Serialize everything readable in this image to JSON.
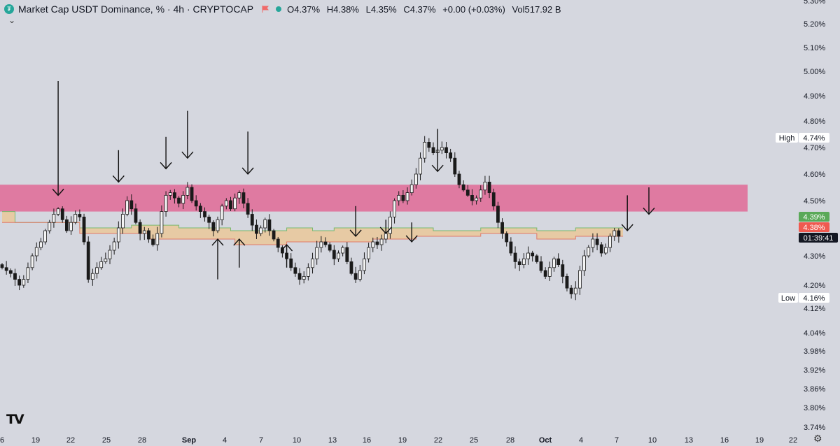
{
  "header": {
    "title": "Market Cap USDT Dominance, % · 4h · CRYPTOCAP",
    "open": "O4.37%",
    "high": "H4.38%",
    "low": "L4.35%",
    "close": "C4.37%",
    "change": "+0.00 (+0.03%)",
    "volume": "Vol517.92 B"
  },
  "icons": {
    "symbol": "tether-icon",
    "flag": "flag-icon",
    "market_status": "dot-icon",
    "collapse": "chevron-down-icon",
    "logo": "tradingview-logo",
    "settings": "gear-icon"
  },
  "colors": {
    "background": "#d5d7df",
    "resistance_zone": "#e0709a",
    "cloud": "#e8c9a0",
    "cloud_upper": "#78b96e",
    "cloud_lower": "#e07a6a",
    "candles": "#1a1a1a",
    "arrows": "#111111",
    "green_badge": "#5aa958",
    "red_badge": "#ef5a50",
    "dark_badge": "#131722"
  },
  "chart_data": {
    "type": "candlestick",
    "title": "Market Cap USDT Dominance, % · 4h · CRYPTOCAP",
    "y_axis": {
      "unit": "%",
      "labels": [
        "5.30%",
        "5.20%",
        "5.10%",
        "5.00%",
        "4.90%",
        "4.80%",
        "4.70%",
        "4.60%",
        "4.50%",
        "4.30%",
        "4.20%",
        "4.12%",
        "4.04%",
        "3.98%",
        "3.92%",
        "3.86%",
        "3.80%",
        "3.74%"
      ]
    },
    "x_axis": {
      "labels": [
        "6",
        "19",
        "22",
        "25",
        "28",
        "Sep",
        "4",
        "7",
        "10",
        "13",
        "16",
        "19",
        "22",
        "25",
        "28",
        "Oct",
        "4",
        "7",
        "10",
        "13",
        "16",
        "19",
        "22"
      ],
      "bold_labels": [
        "Sep",
        "Oct"
      ]
    },
    "price_badges": {
      "high": {
        "label": "High",
        "value": "4.74%"
      },
      "low": {
        "label": "Low",
        "value": "4.16%"
      },
      "cloud_upper": "4.39%",
      "cloud_lower": "4.38%",
      "countdown": "01:39:41"
    },
    "resistance_zone": {
      "from": 4.46,
      "to": 4.56
    },
    "cloud": {
      "upper": [
        [
          0,
          4.46
        ],
        [
          3,
          4.46
        ],
        [
          3,
          4.42
        ],
        [
          18,
          4.42
        ],
        [
          18,
          4.4
        ],
        [
          30,
          4.4
        ],
        [
          30,
          4.41
        ],
        [
          41,
          4.41
        ],
        [
          41,
          4.4
        ],
        [
          53,
          4.4
        ],
        [
          53,
          4.39
        ],
        [
          66,
          4.39
        ],
        [
          66,
          4.4
        ],
        [
          72,
          4.4
        ],
        [
          72,
          4.39
        ],
        [
          77,
          4.39
        ],
        [
          77,
          4.4
        ],
        [
          100,
          4.4
        ],
        [
          100,
          4.39
        ],
        [
          111,
          4.39
        ],
        [
          111,
          4.4
        ],
        [
          124,
          4.4
        ],
        [
          124,
          4.39
        ],
        [
          133,
          4.39
        ],
        [
          133,
          4.4
        ],
        [
          144,
          4.4
        ]
      ],
      "lower": [
        [
          0,
          4.42
        ],
        [
          18,
          4.42
        ],
        [
          18,
          4.38
        ],
        [
          34,
          4.38
        ],
        [
          34,
          4.36
        ],
        [
          54,
          4.36
        ],
        [
          54,
          4.34
        ],
        [
          66,
          4.34
        ],
        [
          66,
          4.35
        ],
        [
          86,
          4.35
        ],
        [
          86,
          4.36
        ],
        [
          96,
          4.36
        ],
        [
          96,
          4.37
        ],
        [
          111,
          4.37
        ],
        [
          111,
          4.38
        ],
        [
          124,
          4.38
        ],
        [
          124,
          4.36
        ],
        [
          133,
          4.36
        ],
        [
          133,
          4.37
        ],
        [
          144,
          4.37
        ]
      ]
    },
    "close": [
      4.26,
      4.25,
      4.24,
      4.22,
      4.2,
      4.22,
      4.26,
      4.3,
      4.33,
      4.35,
      4.39,
      4.42,
      4.45,
      4.47,
      4.43,
      4.39,
      4.42,
      4.45,
      4.44,
      4.35,
      4.22,
      4.24,
      4.26,
      4.28,
      4.29,
      4.32,
      4.35,
      4.4,
      4.45,
      4.5,
      4.47,
      4.42,
      4.38,
      4.39,
      4.36,
      4.34,
      4.38,
      4.46,
      4.52,
      4.53,
      4.51,
      4.49,
      4.52,
      4.55,
      4.5,
      4.48,
      4.46,
      4.44,
      4.42,
      4.39,
      4.43,
      4.48,
      4.5,
      4.47,
      4.51,
      4.53,
      4.49,
      4.45,
      4.41,
      4.38,
      4.4,
      4.43,
      4.39,
      4.36,
      4.33,
      4.31,
      4.29,
      4.26,
      4.24,
      4.22,
      4.23,
      4.26,
      4.29,
      4.33,
      4.35,
      4.34,
      4.32,
      4.29,
      4.31,
      4.33,
      4.28,
      4.24,
      4.22,
      4.25,
      4.29,
      4.33,
      4.35,
      4.34,
      4.36,
      4.38,
      4.44,
      4.5,
      4.52,
      4.5,
      4.53,
      4.56,
      4.6,
      4.66,
      4.72,
      4.7,
      4.68,
      4.69,
      4.7,
      4.68,
      4.66,
      4.6,
      4.56,
      4.54,
      4.52,
      4.5,
      4.51,
      4.54,
      4.57,
      4.53,
      4.48,
      4.42,
      4.38,
      4.35,
      4.31,
      4.28,
      4.27,
      4.29,
      4.31,
      4.3,
      4.28,
      4.25,
      4.23,
      4.26,
      4.29,
      4.27,
      4.23,
      4.19,
      4.17,
      4.19,
      4.25,
      4.3,
      4.33,
      4.36,
      4.34,
      4.31,
      4.33,
      4.37,
      4.39,
      4.37
    ],
    "arrows": [
      {
        "bar": 13,
        "dir": "down",
        "tip": 4.52,
        "tail": 4.96
      },
      {
        "bar": 27,
        "dir": "down",
        "tip": 4.57,
        "tail": 4.69
      },
      {
        "bar": 38,
        "dir": "down",
        "tip": 4.62,
        "tail": 4.74
      },
      {
        "bar": 43,
        "dir": "down",
        "tip": 4.66,
        "tail": 4.84
      },
      {
        "bar": 57,
        "dir": "down",
        "tip": 4.6,
        "tail": 4.76
      },
      {
        "bar": 50,
        "dir": "up",
        "tip": 4.36,
        "tail": 4.22
      },
      {
        "bar": 55,
        "dir": "up",
        "tip": 4.36,
        "tail": 4.26
      },
      {
        "bar": 66,
        "dir": "up",
        "tip": 4.34,
        "tail": 4.26
      },
      {
        "bar": 82,
        "dir": "down",
        "tip": 4.37,
        "tail": 4.48
      },
      {
        "bar": 89,
        "dir": "down",
        "tip": 4.38,
        "tail": 4.43
      },
      {
        "bar": 95,
        "dir": "down",
        "tip": 4.35,
        "tail": 4.42
      },
      {
        "bar": 101,
        "dir": "down",
        "tip": 4.61,
        "tail": 4.77
      },
      {
        "bar": 145,
        "dir": "down",
        "tip": 4.39,
        "tail": 4.52
      },
      {
        "bar": 150,
        "dir": "down",
        "tip": 4.45,
        "tail": 4.55
      }
    ]
  }
}
